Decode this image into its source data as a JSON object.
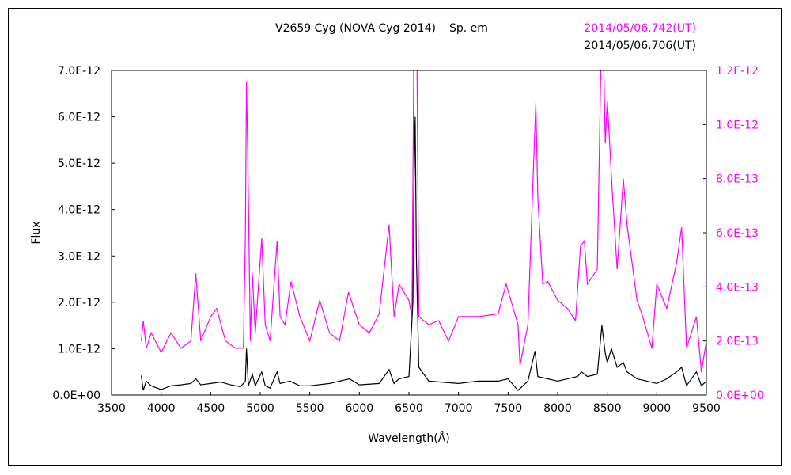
{
  "chart_data": {
    "type": "line",
    "title": "V2659 Cyg (NOVA Cyg 2014)",
    "subtitle": "Sp. em",
    "xlabel": "Wavelength(Å)",
    "ylabel": "Flux",
    "xlim": [
      3500,
      9500
    ],
    "ylim_left": [
      0,
      7e-12
    ],
    "ylim_right": [
      0,
      1.2e-12
    ],
    "x_ticks": [
      "3500",
      "4000",
      "4500",
      "5000",
      "5500",
      "6000",
      "6500",
      "7000",
      "7500",
      "8000",
      "8500",
      "9000",
      "9500"
    ],
    "y_ticks_left": [
      "0.0E+00",
      "1.0E-12",
      "2.0E-12",
      "3.0E-12",
      "4.0E-12",
      "5.0E-12",
      "6.0E-12",
      "7.0E-12"
    ],
    "y_ticks_right": [
      "0.0E+00",
      "2.0E-13",
      "4.0E-13",
      "6.0E-13",
      "8.0E-13",
      "1.0E-12",
      "1.2E-12"
    ],
    "grid": false,
    "series": [
      {
        "name": "2014/05/06.742(UT)",
        "color": "#ff00ff",
        "axis": "right",
        "unit_scale": 1e-13,
        "x": [
          3800,
          3820,
          3850,
          3900,
          4000,
          4100,
          4200,
          4300,
          4350,
          4400,
          4500,
          4560,
          4650,
          4750,
          4830,
          4850,
          4861,
          4875,
          4900,
          4920,
          4950,
          5015,
          5050,
          5100,
          5170,
          5200,
          5250,
          5310,
          5400,
          5500,
          5600,
          5700,
          5800,
          5890,
          6000,
          6100,
          6200,
          6300,
          6350,
          6400,
          6500,
          6530,
          6550,
          6580,
          6600,
          6700,
          6800,
          6900,
          7000,
          7200,
          7400,
          7480,
          7600,
          7620,
          7700,
          7760,
          7780,
          7800,
          7850,
          7900,
          8000,
          8100,
          8180,
          8230,
          8270,
          8300,
          8400,
          8440,
          8460,
          8480,
          8500,
          8550,
          8600,
          8662,
          8700,
          8800,
          8850,
          8950,
          9000,
          9100,
          9200,
          9250,
          9300,
          9400,
          9450,
          9500
        ],
        "y": [
          2.0,
          2.75,
          1.73,
          2.3,
          1.58,
          2.3,
          1.73,
          2.0,
          4.5,
          2.0,
          2.9,
          3.2,
          2.0,
          1.73,
          1.73,
          5.8,
          11.6,
          8.8,
          2.0,
          4.5,
          2.3,
          5.8,
          2.6,
          2.0,
          5.7,
          2.9,
          2.6,
          4.2,
          2.9,
          2.0,
          3.5,
          2.3,
          2.0,
          3.8,
          2.6,
          2.3,
          3.0,
          6.3,
          2.9,
          4.1,
          3.5,
          2.9,
          13,
          13,
          2.9,
          2.6,
          2.75,
          2.0,
          2.9,
          2.9,
          3.0,
          4.1,
          2.6,
          1.1,
          2.6,
          8.8,
          10.8,
          7.3,
          4.1,
          4.2,
          3.5,
          3.2,
          2.75,
          5.5,
          5.7,
          4.1,
          4.65,
          13,
          13,
          9.3,
          10.9,
          7.6,
          4.65,
          8.0,
          6.3,
          3.5,
          3.0,
          1.73,
          4.1,
          3.2,
          4.9,
          6.2,
          1.73,
          2.9,
          0.85,
          2.0
        ]
      },
      {
        "name": "2014/05/06.706(UT)",
        "color": "#000000",
        "axis": "left",
        "unit_scale": 1e-12,
        "x": [
          3800,
          3820,
          3850,
          3900,
          4000,
          4100,
          4200,
          4300,
          4350,
          4400,
          4500,
          4600,
          4700,
          4800,
          4850,
          4861,
          4880,
          4920,
          4950,
          5015,
          5050,
          5100,
          5170,
          5200,
          5300,
          5400,
          5500,
          5700,
          5900,
          6000,
          6200,
          6300,
          6350,
          6400,
          6500,
          6540,
          6555,
          6563,
          6575,
          6600,
          6700,
          7000,
          7200,
          7400,
          7500,
          7600,
          7700,
          7772,
          7800,
          7900,
          8000,
          8200,
          8240,
          8300,
          8400,
          8446,
          8480,
          8500,
          8542,
          8600,
          8662,
          8700,
          8800,
          8900,
          9000,
          9100,
          9200,
          9250,
          9300,
          9400,
          9450,
          9500
        ],
        "y": [
          0.42,
          0.1,
          0.3,
          0.2,
          0.12,
          0.2,
          0.22,
          0.25,
          0.35,
          0.22,
          0.25,
          0.28,
          0.22,
          0.18,
          0.3,
          1.0,
          0.2,
          0.45,
          0.2,
          0.5,
          0.2,
          0.15,
          0.5,
          0.25,
          0.3,
          0.2,
          0.2,
          0.25,
          0.35,
          0.22,
          0.25,
          0.55,
          0.25,
          0.35,
          0.4,
          2.0,
          5.2,
          6.0,
          3.0,
          0.6,
          0.3,
          0.25,
          0.3,
          0.3,
          0.35,
          0.1,
          0.3,
          0.95,
          0.4,
          0.35,
          0.3,
          0.4,
          0.5,
          0.4,
          0.45,
          1.5,
          0.9,
          0.7,
          1.0,
          0.6,
          0.7,
          0.5,
          0.35,
          0.3,
          0.25,
          0.35,
          0.5,
          0.6,
          0.2,
          0.5,
          0.2,
          0.3
        ]
      }
    ]
  }
}
